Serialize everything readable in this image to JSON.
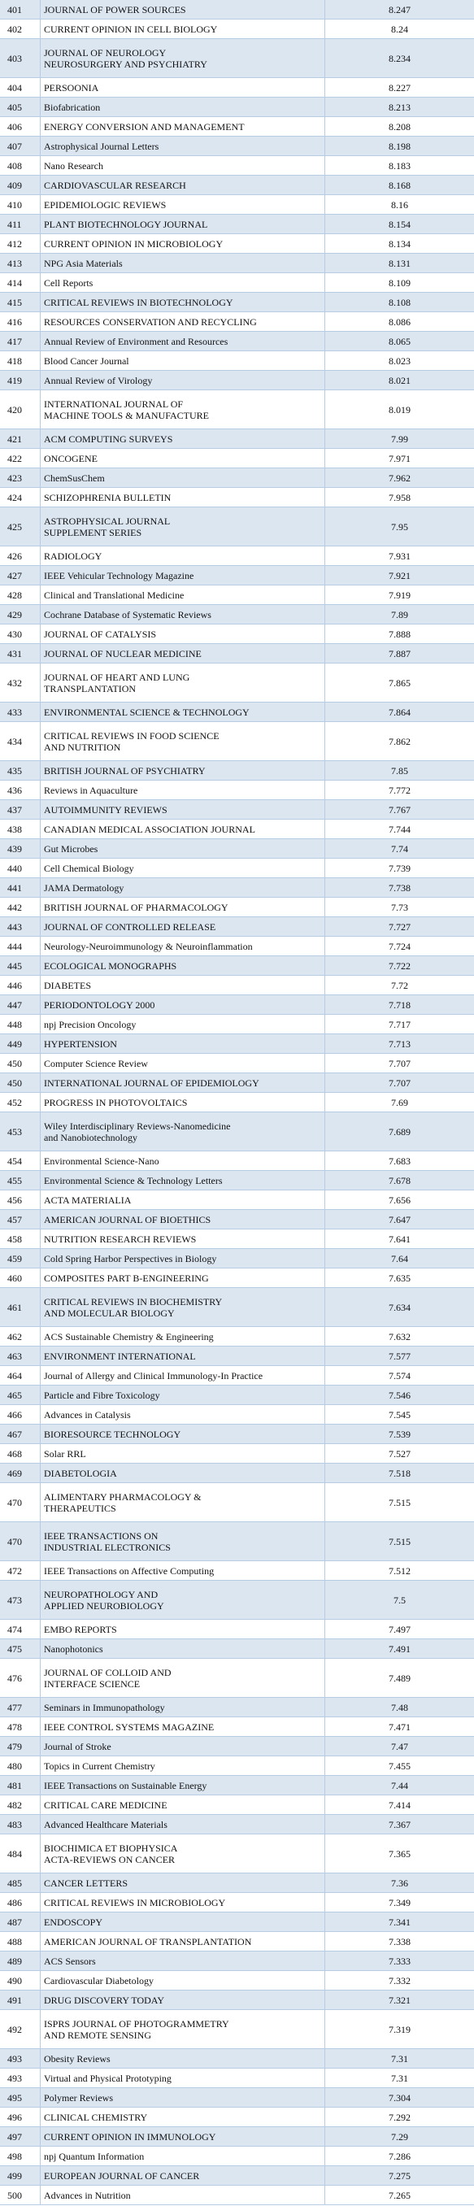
{
  "table": {
    "rows": [
      [
        401,
        [
          "JOURNAL OF POWER SOURCES"
        ],
        8.247
      ],
      [
        402,
        [
          "CURRENT OPINION IN CELL BIOLOGY"
        ],
        8.24
      ],
      [
        403,
        [
          "JOURNAL OF NEUROLOGY",
          "NEUROSURGERY AND PSYCHIATRY"
        ],
        8.234
      ],
      [
        404,
        [
          "PERSOONIA"
        ],
        8.227
      ],
      [
        405,
        [
          "Biofabrication"
        ],
        8.213
      ],
      [
        406,
        [
          "ENERGY CONVERSION AND MANAGEMENT"
        ],
        8.208
      ],
      [
        407,
        [
          "Astrophysical Journal Letters"
        ],
        8.198
      ],
      [
        408,
        [
          "Nano Research"
        ],
        8.183
      ],
      [
        409,
        [
          "CARDIOVASCULAR RESEARCH"
        ],
        8.168
      ],
      [
        410,
        [
          "EPIDEMIOLOGIC REVIEWS"
        ],
        8.16
      ],
      [
        411,
        [
          "PLANT BIOTECHNOLOGY JOURNAL"
        ],
        8.154
      ],
      [
        412,
        [
          "CURRENT OPINION IN MICROBIOLOGY"
        ],
        8.134
      ],
      [
        413,
        [
          "NPG Asia Materials"
        ],
        8.131
      ],
      [
        414,
        [
          "Cell Reports"
        ],
        8.109
      ],
      [
        415,
        [
          "CRITICAL REVIEWS IN BIOTECHNOLOGY"
        ],
        8.108
      ],
      [
        416,
        [
          "RESOURCES CONSERVATION AND RECYCLING"
        ],
        8.086
      ],
      [
        417,
        [
          "Annual Review of Environment and Resources"
        ],
        8.065
      ],
      [
        418,
        [
          "Blood Cancer Journal"
        ],
        8.023
      ],
      [
        419,
        [
          "Annual Review of Virology"
        ],
        8.021
      ],
      [
        420,
        [
          "INTERNATIONAL JOURNAL OF",
          "MACHINE TOOLS & MANUFACTURE"
        ],
        8.019
      ],
      [
        421,
        [
          "ACM COMPUTING SURVEYS"
        ],
        7.99
      ],
      [
        422,
        [
          "ONCOGENE"
        ],
        7.971
      ],
      [
        423,
        [
          "ChemSusChem"
        ],
        7.962
      ],
      [
        424,
        [
          "SCHIZOPHRENIA BULLETIN"
        ],
        7.958
      ],
      [
        425,
        [
          "ASTROPHYSICAL JOURNAL",
          "SUPPLEMENT SERIES"
        ],
        7.95
      ],
      [
        426,
        [
          "RADIOLOGY"
        ],
        7.931
      ],
      [
        427,
        [
          "IEEE Vehicular Technology Magazine"
        ],
        7.921
      ],
      [
        428,
        [
          "Clinical and Translational Medicine"
        ],
        7.919
      ],
      [
        429,
        [
          "Cochrane Database of Systematic Reviews"
        ],
        7.89
      ],
      [
        430,
        [
          "JOURNAL OF CATALYSIS"
        ],
        7.888
      ],
      [
        431,
        [
          "JOURNAL OF NUCLEAR MEDICINE"
        ],
        7.887
      ],
      [
        432,
        [
          "JOURNAL OF HEART AND LUNG",
          "TRANSPLANTATION"
        ],
        7.865
      ],
      [
        433,
        [
          "ENVIRONMENTAL SCIENCE & TECHNOLOGY"
        ],
        7.864
      ],
      [
        434,
        [
          "CRITICAL REVIEWS IN FOOD SCIENCE",
          "AND NUTRITION"
        ],
        7.862
      ],
      [
        435,
        [
          "BRITISH JOURNAL OF PSYCHIATRY"
        ],
        7.85
      ],
      [
        436,
        [
          "Reviews in Aquaculture"
        ],
        7.772
      ],
      [
        437,
        [
          "AUTOIMMUNITY REVIEWS"
        ],
        7.767
      ],
      [
        438,
        [
          "CANADIAN MEDICAL ASSOCIATION JOURNAL"
        ],
        7.744
      ],
      [
        439,
        [
          "Gut Microbes"
        ],
        7.74
      ],
      [
        440,
        [
          "Cell Chemical Biology"
        ],
        7.739
      ],
      [
        441,
        [
          "JAMA Dermatology"
        ],
        7.738
      ],
      [
        442,
        [
          "BRITISH JOURNAL OF PHARMACOLOGY"
        ],
        7.73
      ],
      [
        443,
        [
          "JOURNAL OF CONTROLLED RELEASE"
        ],
        7.727
      ],
      [
        444,
        [
          "Neurology-Neuroimmunology & Neuroinflammation"
        ],
        7.724
      ],
      [
        445,
        [
          "ECOLOGICAL MONOGRAPHS"
        ],
        7.722
      ],
      [
        446,
        [
          "DIABETES"
        ],
        7.72
      ],
      [
        447,
        [
          "PERIODONTOLOGY 2000"
        ],
        7.718
      ],
      [
        448,
        [
          "npj Precision Oncology"
        ],
        7.717
      ],
      [
        449,
        [
          "HYPERTENSION"
        ],
        7.713
      ],
      [
        450,
        [
          "Computer Science Review"
        ],
        7.707
      ],
      [
        450,
        [
          "INTERNATIONAL JOURNAL OF EPIDEMIOLOGY"
        ],
        7.707
      ],
      [
        452,
        [
          "PROGRESS IN PHOTOVOLTAICS"
        ],
        7.69
      ],
      [
        453,
        [
          "Wiley Interdisciplinary Reviews-Nanomedicine",
          "and Nanobiotechnology"
        ],
        7.689
      ],
      [
        454,
        [
          "Environmental Science-Nano"
        ],
        7.683
      ],
      [
        455,
        [
          "Environmental Science & Technology Letters"
        ],
        7.678
      ],
      [
        456,
        [
          "ACTA MATERIALIA"
        ],
        7.656
      ],
      [
        457,
        [
          "AMERICAN JOURNAL OF BIOETHICS"
        ],
        7.647
      ],
      [
        458,
        [
          "NUTRITION RESEARCH REVIEWS"
        ],
        7.641
      ],
      [
        459,
        [
          "Cold Spring Harbor Perspectives in Biology"
        ],
        7.64
      ],
      [
        460,
        [
          "COMPOSITES PART B-ENGINEERING"
        ],
        7.635
      ],
      [
        461,
        [
          "CRITICAL REVIEWS IN BIOCHEMISTRY",
          "AND MOLECULAR BIOLOGY"
        ],
        7.634
      ],
      [
        462,
        [
          "ACS Sustainable Chemistry & Engineering"
        ],
        7.632
      ],
      [
        463,
        [
          "ENVIRONMENT INTERNATIONAL"
        ],
        7.577
      ],
      [
        464,
        [
          "Journal of Allergy and Clinical Immunology-In Practice"
        ],
        7.574
      ],
      [
        465,
        [
          "Particle and Fibre Toxicology"
        ],
        7.546
      ],
      [
        466,
        [
          "Advances in Catalysis"
        ],
        7.545
      ],
      [
        467,
        [
          "BIORESOURCE TECHNOLOGY"
        ],
        7.539
      ],
      [
        468,
        [
          "Solar RRL"
        ],
        7.527
      ],
      [
        469,
        [
          "DIABETOLOGIA"
        ],
        7.518
      ],
      [
        470,
        [
          "ALIMENTARY PHARMACOLOGY &",
          "THERAPEUTICS"
        ],
        7.515
      ],
      [
        470,
        [
          "IEEE TRANSACTIONS ON",
          "INDUSTRIAL ELECTRONICS"
        ],
        7.515
      ],
      [
        472,
        [
          "IEEE Transactions on Affective Computing"
        ],
        7.512
      ],
      [
        473,
        [
          "NEUROPATHOLOGY AND",
          "APPLIED NEUROBIOLOGY"
        ],
        7.5
      ],
      [
        474,
        [
          "EMBO REPORTS"
        ],
        7.497
      ],
      [
        475,
        [
          "Nanophotonics"
        ],
        7.491
      ],
      [
        476,
        [
          "JOURNAL OF COLLOID AND",
          "INTERFACE SCIENCE"
        ],
        7.489
      ],
      [
        477,
        [
          "Seminars in Immunopathology"
        ],
        7.48
      ],
      [
        478,
        [
          "IEEE CONTROL SYSTEMS MAGAZINE"
        ],
        7.471
      ],
      [
        479,
        [
          "Journal of Stroke"
        ],
        7.47
      ],
      [
        480,
        [
          "Topics in Current Chemistry"
        ],
        7.455
      ],
      [
        481,
        [
          "IEEE Transactions on Sustainable Energy"
        ],
        7.44
      ],
      [
        482,
        [
          "CRITICAL CARE MEDICINE"
        ],
        7.414
      ],
      [
        483,
        [
          "Advanced Healthcare Materials"
        ],
        7.367
      ],
      [
        484,
        [
          "BIOCHIMICA ET BIOPHYSICA",
          "ACTA-REVIEWS ON CANCER"
        ],
        7.365
      ],
      [
        485,
        [
          "CANCER LETTERS"
        ],
        7.36
      ],
      [
        486,
        [
          "CRITICAL REVIEWS IN MICROBIOLOGY"
        ],
        7.349
      ],
      [
        487,
        [
          "ENDOSCOPY"
        ],
        7.341
      ],
      [
        488,
        [
          "AMERICAN JOURNAL OF TRANSPLANTATION"
        ],
        7.338
      ],
      [
        489,
        [
          "ACS Sensors"
        ],
        7.333
      ],
      [
        490,
        [
          "Cardiovascular Diabetology"
        ],
        7.332
      ],
      [
        491,
        [
          "DRUG DISCOVERY TODAY"
        ],
        7.321
      ],
      [
        492,
        [
          "ISPRS JOURNAL OF PHOTOGRAMMETRY",
          "AND REMOTE SENSING"
        ],
        7.319
      ],
      [
        493,
        [
          "Obesity Reviews"
        ],
        7.31
      ],
      [
        493,
        [
          "Virtual and Physical Prototyping"
        ],
        7.31
      ],
      [
        495,
        [
          "Polymer Reviews"
        ],
        7.304
      ],
      [
        496,
        [
          "CLINICAL CHEMISTRY"
        ],
        7.292
      ],
      [
        497,
        [
          "CURRENT OPINION IN IMMUNOLOGY"
        ],
        7.29
      ],
      [
        498,
        [
          "npj Quantum Information"
        ],
        7.286
      ],
      [
        499,
        [
          "EUROPEAN JOURNAL OF CANCER"
        ],
        7.275
      ],
      [
        500,
        [
          "Advances in Nutrition"
        ],
        7.265
      ]
    ]
  }
}
